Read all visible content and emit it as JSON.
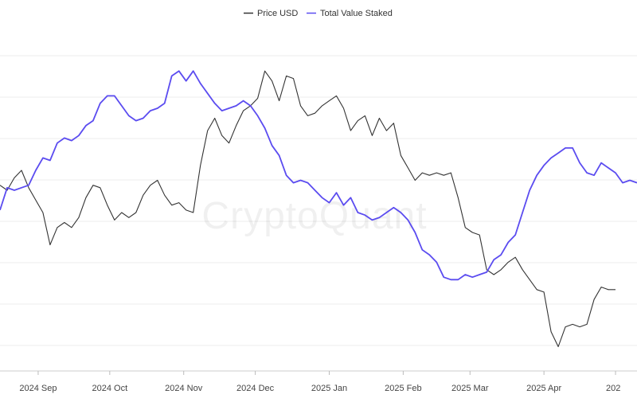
{
  "chart_data": {
    "type": "line",
    "title": "",
    "watermark": "CryptoQuant",
    "legend_position": "top-center",
    "grid": "horizontal",
    "x_ticks": [
      "2024 Sep",
      "2024 Oct",
      "2024 Nov",
      "2024 Dec",
      "2025 Jan",
      "2025 Feb",
      "2025 Mar",
      "2025 Apr",
      "202"
    ],
    "x_tick_dates": [
      "2024-09-01",
      "2024-10-01",
      "2024-11-01",
      "2024-12-01",
      "2025-01-01",
      "2025-02-01",
      "2025-03-01",
      "2025-04-01",
      "2025-05-01"
    ],
    "x_range": [
      "2024-08-16",
      "2025-05-10"
    ],
    "y_ticks_shown": false,
    "series": [
      {
        "name": "Price USD",
        "color": "#333333",
        "points": [
          [
            "2024-08-16",
            0.44
          ],
          [
            "2024-08-19",
            0.42
          ],
          [
            "2024-08-22",
            0.47
          ],
          [
            "2024-08-25",
            0.5
          ],
          [
            "2024-08-28",
            0.43
          ],
          [
            "2024-08-31",
            0.38
          ],
          [
            "2024-09-03",
            0.33
          ],
          [
            "2024-09-06",
            0.2
          ],
          [
            "2024-09-09",
            0.27
          ],
          [
            "2024-09-12",
            0.29
          ],
          [
            "2024-09-15",
            0.27
          ],
          [
            "2024-09-18",
            0.31
          ],
          [
            "2024-09-21",
            0.39
          ],
          [
            "2024-09-24",
            0.44
          ],
          [
            "2024-09-27",
            0.43
          ],
          [
            "2024-09-30",
            0.36
          ],
          [
            "2024-10-03",
            0.3
          ],
          [
            "2024-10-06",
            0.33
          ],
          [
            "2024-10-09",
            0.31
          ],
          [
            "2024-10-12",
            0.33
          ],
          [
            "2024-10-15",
            0.4
          ],
          [
            "2024-10-18",
            0.44
          ],
          [
            "2024-10-21",
            0.46
          ],
          [
            "2024-10-24",
            0.4
          ],
          [
            "2024-10-27",
            0.36
          ],
          [
            "2024-10-30",
            0.37
          ],
          [
            "2024-11-02",
            0.34
          ],
          [
            "2024-11-05",
            0.33
          ],
          [
            "2024-11-08",
            0.52
          ],
          [
            "2024-11-11",
            0.66
          ],
          [
            "2024-11-14",
            0.71
          ],
          [
            "2024-11-17",
            0.64
          ],
          [
            "2024-11-20",
            0.61
          ],
          [
            "2024-11-23",
            0.68
          ],
          [
            "2024-11-26",
            0.74
          ],
          [
            "2024-11-29",
            0.76
          ],
          [
            "2024-12-02",
            0.79
          ],
          [
            "2024-12-05",
            0.9
          ],
          [
            "2024-12-08",
            0.86
          ],
          [
            "2024-12-11",
            0.78
          ],
          [
            "2024-12-14",
            0.88
          ],
          [
            "2024-12-17",
            0.87
          ],
          [
            "2024-12-20",
            0.76
          ],
          [
            "2024-12-23",
            0.72
          ],
          [
            "2024-12-26",
            0.73
          ],
          [
            "2024-12-29",
            0.76
          ],
          [
            "2025-01-01",
            0.78
          ],
          [
            "2025-01-04",
            0.8
          ],
          [
            "2025-01-07",
            0.75
          ],
          [
            "2025-01-10",
            0.66
          ],
          [
            "2025-01-13",
            0.7
          ],
          [
            "2025-01-16",
            0.72
          ],
          [
            "2025-01-19",
            0.64
          ],
          [
            "2025-01-22",
            0.71
          ],
          [
            "2025-01-25",
            0.66
          ],
          [
            "2025-01-28",
            0.69
          ],
          [
            "2025-01-31",
            0.56
          ],
          [
            "2025-02-03",
            0.51
          ],
          [
            "2025-02-06",
            0.46
          ],
          [
            "2025-02-09",
            0.49
          ],
          [
            "2025-02-12",
            0.48
          ],
          [
            "2025-02-15",
            0.49
          ],
          [
            "2025-02-18",
            0.48
          ],
          [
            "2025-02-21",
            0.49
          ],
          [
            "2025-02-24",
            0.39
          ],
          [
            "2025-02-27",
            0.27
          ],
          [
            "2025-03-02",
            0.25
          ],
          [
            "2025-03-05",
            0.24
          ],
          [
            "2025-03-08",
            0.1
          ],
          [
            "2025-03-11",
            0.08
          ],
          [
            "2025-03-14",
            0.1
          ],
          [
            "2025-03-17",
            0.13
          ],
          [
            "2025-03-20",
            0.15
          ],
          [
            "2025-03-23",
            0.1
          ],
          [
            "2025-03-26",
            0.06
          ],
          [
            "2025-03-29",
            0.02
          ],
          [
            "2025-04-01",
            0.01
          ],
          [
            "2025-04-04",
            -0.15
          ],
          [
            "2025-04-07",
            -0.21
          ],
          [
            "2025-04-10",
            -0.13
          ],
          [
            "2025-04-13",
            -0.12
          ],
          [
            "2025-04-16",
            -0.13
          ],
          [
            "2025-04-19",
            -0.12
          ],
          [
            "2025-04-22",
            -0.02
          ],
          [
            "2025-04-25",
            0.03
          ],
          [
            "2025-04-28",
            0.02
          ],
          [
            "2025-05-01",
            0.02
          ]
        ]
      },
      {
        "name": "Total Value Staked",
        "color": "#5b4cf0",
        "points": [
          [
            "2024-08-16",
            0.34
          ],
          [
            "2024-08-19",
            0.43
          ],
          [
            "2024-08-22",
            0.42
          ],
          [
            "2024-08-25",
            0.43
          ],
          [
            "2024-08-28",
            0.44
          ],
          [
            "2024-08-31",
            0.5
          ],
          [
            "2024-09-03",
            0.55
          ],
          [
            "2024-09-06",
            0.54
          ],
          [
            "2024-09-09",
            0.61
          ],
          [
            "2024-09-12",
            0.63
          ],
          [
            "2024-09-15",
            0.62
          ],
          [
            "2024-09-18",
            0.64
          ],
          [
            "2024-09-21",
            0.68
          ],
          [
            "2024-09-24",
            0.7
          ],
          [
            "2024-09-27",
            0.77
          ],
          [
            "2024-09-30",
            0.8
          ],
          [
            "2024-10-03",
            0.8
          ],
          [
            "2024-10-06",
            0.76
          ],
          [
            "2024-10-09",
            0.72
          ],
          [
            "2024-10-12",
            0.7
          ],
          [
            "2024-10-15",
            0.71
          ],
          [
            "2024-10-18",
            0.74
          ],
          [
            "2024-10-21",
            0.75
          ],
          [
            "2024-10-24",
            0.77
          ],
          [
            "2024-10-27",
            0.88
          ],
          [
            "2024-10-30",
            0.9
          ],
          [
            "2024-11-02",
            0.86
          ],
          [
            "2024-11-05",
            0.9
          ],
          [
            "2024-11-08",
            0.85
          ],
          [
            "2024-11-11",
            0.81
          ],
          [
            "2024-11-14",
            0.77
          ],
          [
            "2024-11-17",
            0.74
          ],
          [
            "2024-11-20",
            0.75
          ],
          [
            "2024-11-23",
            0.76
          ],
          [
            "2024-11-26",
            0.78
          ],
          [
            "2024-11-29",
            0.76
          ],
          [
            "2024-12-02",
            0.72
          ],
          [
            "2024-12-05",
            0.67
          ],
          [
            "2024-12-08",
            0.6
          ],
          [
            "2024-12-11",
            0.56
          ],
          [
            "2024-12-14",
            0.48
          ],
          [
            "2024-12-17",
            0.45
          ],
          [
            "2024-12-20",
            0.46
          ],
          [
            "2024-12-23",
            0.45
          ],
          [
            "2024-12-26",
            0.42
          ],
          [
            "2024-12-29",
            0.39
          ],
          [
            "2025-01-01",
            0.37
          ],
          [
            "2025-01-04",
            0.41
          ],
          [
            "2025-01-07",
            0.36
          ],
          [
            "2025-01-10",
            0.39
          ],
          [
            "2025-01-13",
            0.33
          ],
          [
            "2025-01-16",
            0.32
          ],
          [
            "2025-01-19",
            0.3
          ],
          [
            "2025-01-22",
            0.31
          ],
          [
            "2025-01-25",
            0.33
          ],
          [
            "2025-01-28",
            0.35
          ],
          [
            "2025-01-31",
            0.33
          ],
          [
            "2025-02-03",
            0.3
          ],
          [
            "2025-02-06",
            0.25
          ],
          [
            "2025-02-09",
            0.18
          ],
          [
            "2025-02-12",
            0.16
          ],
          [
            "2025-02-15",
            0.13
          ],
          [
            "2025-02-18",
            0.07
          ],
          [
            "2025-02-21",
            0.06
          ],
          [
            "2025-02-24",
            0.06
          ],
          [
            "2025-02-27",
            0.08
          ],
          [
            "2025-03-02",
            0.07
          ],
          [
            "2025-03-05",
            0.08
          ],
          [
            "2025-03-08",
            0.09
          ],
          [
            "2025-03-11",
            0.14
          ],
          [
            "2025-03-14",
            0.16
          ],
          [
            "2025-03-17",
            0.21
          ],
          [
            "2025-03-20",
            0.24
          ],
          [
            "2025-03-23",
            0.33
          ],
          [
            "2025-03-26",
            0.42
          ],
          [
            "2025-03-29",
            0.48
          ],
          [
            "2025-04-01",
            0.52
          ],
          [
            "2025-04-04",
            0.55
          ],
          [
            "2025-04-07",
            0.57
          ],
          [
            "2025-04-10",
            0.59
          ],
          [
            "2025-04-13",
            0.59
          ],
          [
            "2025-04-16",
            0.53
          ],
          [
            "2025-04-19",
            0.49
          ],
          [
            "2025-04-22",
            0.48
          ],
          [
            "2025-04-25",
            0.53
          ],
          [
            "2025-04-28",
            0.51
          ],
          [
            "2025-05-01",
            0.49
          ],
          [
            "2025-05-04",
            0.45
          ],
          [
            "2025-05-07",
            0.46
          ],
          [
            "2025-05-10",
            0.45
          ]
        ]
      }
    ]
  }
}
